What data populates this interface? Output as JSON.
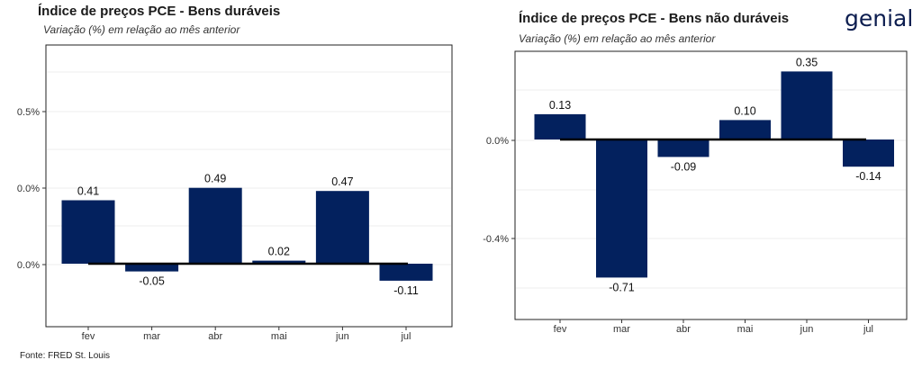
{
  "source": "Fonte: FRED St. Louis",
  "logo_text": "genial",
  "colors": {
    "bar": "#03215e",
    "zero_line": "#000000",
    "grid": "#ececec"
  },
  "chart_data": [
    {
      "type": "bar",
      "title": "Índice de preços PCE - Bens duráveis",
      "subtitle": "Variação (%) em relação ao mês anterior",
      "categories": [
        "fev",
        "mar",
        "abr",
        "mai",
        "jun",
        "jul"
      ],
      "values": [
        0.41,
        -0.05,
        0.49,
        0.02,
        0.47,
        -0.11
      ],
      "data_labels": [
        "0.41",
        "-0.05",
        "0.49",
        "0.02",
        "0.47",
        "-0.11"
      ],
      "y_tick_labels": [
        "0.5%",
        "0.0%",
        "0.0%"
      ],
      "grid": true
    },
    {
      "type": "bar",
      "title": "Índice de preços PCE - Bens não duráveis",
      "subtitle": "Variação (%) em relação ao mês anterior",
      "categories": [
        "fev",
        "mar",
        "abr",
        "mai",
        "jun",
        "jul"
      ],
      "values": [
        0.13,
        -0.71,
        -0.09,
        0.1,
        0.35,
        -0.14
      ],
      "data_labels": [
        "0.13",
        "-0.71",
        "-0.09",
        "0.10",
        "0.35",
        "-0.14"
      ],
      "y_tick_labels": [
        "0.0%",
        "-0.4%"
      ],
      "grid": true
    }
  ]
}
